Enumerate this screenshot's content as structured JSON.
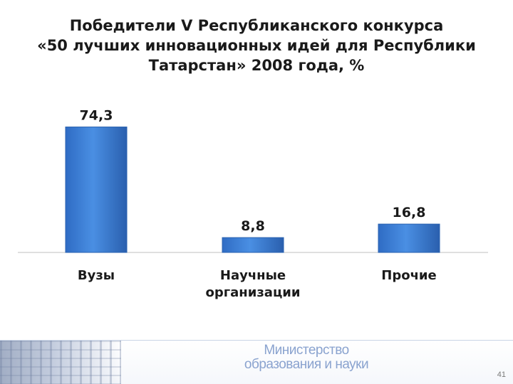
{
  "title_lines": [
    "Победители V Республиканского конкурса",
    "«50 лучших инновационных идей для Республики",
    "Татарстан»  2008 года, %"
  ],
  "chart_data": {
    "type": "bar",
    "categories": [
      [
        "Вузы"
      ],
      [
        "Научные",
        "организации"
      ],
      [
        "Прочие"
      ]
    ],
    "values": [
      74.3,
      8.8,
      16.8
    ],
    "value_labels": [
      "74,3",
      "8,8",
      "16,8"
    ],
    "ylim": [
      0,
      80
    ],
    "grid": false,
    "legend": "none",
    "colors": {
      "bar": "#3d7fd6",
      "bar_dark": "#2a62b0",
      "axis": "#bfbfbf",
      "text": "#1a1a1a"
    }
  },
  "footer": {
    "logo_line1": "Министерство",
    "logo_line2": "образования и науки",
    "page_number": "41"
  }
}
